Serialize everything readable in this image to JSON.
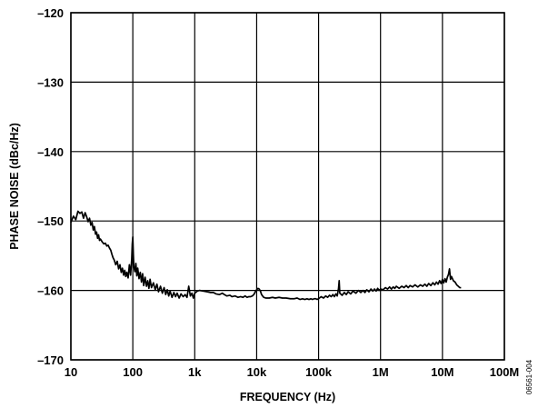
{
  "figure_id": "06561-004",
  "chart_data": {
    "type": "line",
    "title": "",
    "xlabel": "FREQUENCY (Hz)",
    "ylabel": "PHASE NOISE (dBc/Hz)",
    "x_scale": "log",
    "xlim": [
      10,
      100000000
    ],
    "ylim": [
      -170,
      -120
    ],
    "grid": true,
    "x_ticks": [
      {
        "value": 10,
        "label": "10"
      },
      {
        "value": 100,
        "label": "100"
      },
      {
        "value": 1000,
        "label": "1k"
      },
      {
        "value": 10000,
        "label": "10k"
      },
      {
        "value": 100000,
        "label": "100k"
      },
      {
        "value": 1000000,
        "label": "1M"
      },
      {
        "value": 10000000,
        "label": "10M"
      },
      {
        "value": 100000000,
        "label": "100M"
      }
    ],
    "y_ticks": [
      {
        "value": -120,
        "label": "–120"
      },
      {
        "value": -130,
        "label": "–130"
      },
      {
        "value": -140,
        "label": "–140"
      },
      {
        "value": -150,
        "label": "–150"
      },
      {
        "value": -160,
        "label": "–160"
      },
      {
        "value": -170,
        "label": "–170"
      }
    ],
    "series": [
      {
        "color": "#000000",
        "points": [
          [
            10,
            -150.2
          ],
          [
            11,
            -149.3
          ],
          [
            12,
            -149.8
          ],
          [
            13,
            -148.6
          ],
          [
            14,
            -148.9
          ],
          [
            15,
            -148.7
          ],
          [
            16,
            -149.6
          ],
          [
            17,
            -148.8
          ],
          [
            18,
            -149.4
          ],
          [
            19,
            -150.1
          ],
          [
            20,
            -149.6
          ],
          [
            21,
            -150.6
          ],
          [
            22,
            -150.2
          ],
          [
            23,
            -151.3
          ],
          [
            24,
            -150.8
          ],
          [
            25,
            -151.9
          ],
          [
            26,
            -151.6
          ],
          [
            27,
            -152.5
          ],
          [
            28,
            -152.0
          ],
          [
            29,
            -152.8
          ],
          [
            30,
            -152.6
          ],
          [
            32,
            -153.0
          ],
          [
            34,
            -153.3
          ],
          [
            36,
            -153.2
          ],
          [
            38,
            -153.6
          ],
          [
            40,
            -153.5
          ],
          [
            42,
            -153.9
          ],
          [
            44,
            -154.2
          ],
          [
            46,
            -154.8
          ],
          [
            48,
            -155.3
          ],
          [
            50,
            -155.6
          ],
          [
            53,
            -156.3
          ],
          [
            56,
            -155.8
          ],
          [
            59,
            -156.9
          ],
          [
            62,
            -156.3
          ],
          [
            65,
            -157.4
          ],
          [
            68,
            -156.8
          ],
          [
            71,
            -157.8
          ],
          [
            74,
            -157.1
          ],
          [
            77,
            -158.0
          ],
          [
            80,
            -157.4
          ],
          [
            84,
            -158.2
          ],
          [
            88,
            -156.3
          ],
          [
            92,
            -157.8
          ],
          [
            96,
            -155.5
          ],
          [
            98,
            -153.3
          ],
          [
            100,
            -152.3
          ],
          [
            102,
            -154.8
          ],
          [
            104,
            -156.6
          ],
          [
            108,
            -157.3
          ],
          [
            112,
            -156.1
          ],
          [
            116,
            -157.9
          ],
          [
            120,
            -156.8
          ],
          [
            126,
            -158.3
          ],
          [
            132,
            -157.4
          ],
          [
            138,
            -158.8
          ],
          [
            144,
            -157.6
          ],
          [
            150,
            -159.3
          ],
          [
            158,
            -158.1
          ],
          [
            166,
            -159.4
          ],
          [
            174,
            -158.6
          ],
          [
            182,
            -159.7
          ],
          [
            190,
            -158.4
          ],
          [
            200,
            -159.6
          ],
          [
            215,
            -158.9
          ],
          [
            230,
            -159.9
          ],
          [
            245,
            -159.1
          ],
          [
            260,
            -160.2
          ],
          [
            280,
            -159.4
          ],
          [
            300,
            -160.4
          ],
          [
            320,
            -159.6
          ],
          [
            340,
            -160.6
          ],
          [
            360,
            -159.9
          ],
          [
            380,
            -160.8
          ],
          [
            400,
            -160.1
          ],
          [
            430,
            -161.0
          ],
          [
            460,
            -160.3
          ],
          [
            490,
            -160.9
          ],
          [
            520,
            -160.4
          ],
          [
            560,
            -161.1
          ],
          [
            600,
            -160.5
          ],
          [
            650,
            -160.9
          ],
          [
            700,
            -160.6
          ],
          [
            750,
            -161.0
          ],
          [
            800,
            -159.4
          ],
          [
            850,
            -160.8
          ],
          [
            900,
            -160.4
          ],
          [
            950,
            -161.1
          ],
          [
            1000,
            -160.4
          ],
          [
            1100,
            -160.1
          ],
          [
            1200,
            -160.0
          ],
          [
            1400,
            -160.1
          ],
          [
            1600,
            -160.2
          ],
          [
            1800,
            -160.3
          ],
          [
            2000,
            -160.3
          ],
          [
            2200,
            -160.5
          ],
          [
            2500,
            -160.6
          ],
          [
            2800,
            -160.4
          ],
          [
            3000,
            -160.6
          ],
          [
            3300,
            -160.8
          ],
          [
            3700,
            -160.7
          ],
          [
            4000,
            -160.9
          ],
          [
            4500,
            -160.8
          ],
          [
            5000,
            -161.0
          ],
          [
            5500,
            -160.9
          ],
          [
            6000,
            -161.0
          ],
          [
            6500,
            -160.8
          ],
          [
            7000,
            -161.0
          ],
          [
            7500,
            -160.9
          ],
          [
            8000,
            -160.9
          ],
          [
            8500,
            -160.8
          ],
          [
            9000,
            -160.6
          ],
          [
            9500,
            -160.2
          ],
          [
            10000,
            -159.9
          ],
          [
            10500,
            -159.7
          ],
          [
            11000,
            -159.8
          ],
          [
            11500,
            -160.1
          ],
          [
            12000,
            -160.6
          ],
          [
            13000,
            -161.0
          ],
          [
            14000,
            -161.1
          ],
          [
            16000,
            -161.1
          ],
          [
            18000,
            -161.0
          ],
          [
            20000,
            -161.1
          ],
          [
            23000,
            -161.0
          ],
          [
            26000,
            -161.1
          ],
          [
            30000,
            -161.1
          ],
          [
            35000,
            -161.2
          ],
          [
            40000,
            -161.2
          ],
          [
            45000,
            -161.1
          ],
          [
            50000,
            -161.3
          ],
          [
            55000,
            -161.2
          ],
          [
            60000,
            -161.3
          ],
          [
            65000,
            -161.2
          ],
          [
            70000,
            -161.3
          ],
          [
            75000,
            -161.2
          ],
          [
            80000,
            -161.3
          ],
          [
            85000,
            -161.2
          ],
          [
            90000,
            -161.2
          ],
          [
            95000,
            -161.3
          ],
          [
            100000,
            -161.2
          ],
          [
            110000,
            -160.9
          ],
          [
            120000,
            -161.1
          ],
          [
            130000,
            -160.8
          ],
          [
            140000,
            -161.0
          ],
          [
            150000,
            -160.7
          ],
          [
            160000,
            -160.9
          ],
          [
            170000,
            -160.6
          ],
          [
            180000,
            -160.9
          ],
          [
            190000,
            -160.5
          ],
          [
            200000,
            -160.8
          ],
          [
            210000,
            -159.7
          ],
          [
            215000,
            -158.6
          ],
          [
            220000,
            -160.4
          ],
          [
            240000,
            -160.7
          ],
          [
            260000,
            -160.3
          ],
          [
            280000,
            -160.6
          ],
          [
            300000,
            -160.2
          ],
          [
            330000,
            -160.5
          ],
          [
            360000,
            -160.1
          ],
          [
            400000,
            -160.4
          ],
          [
            440000,
            -160.0
          ],
          [
            480000,
            -160.3
          ],
          [
            520000,
            -160.0
          ],
          [
            560000,
            -160.3
          ],
          [
            600000,
            -159.9
          ],
          [
            650000,
            -160.2
          ],
          [
            700000,
            -159.8
          ],
          [
            750000,
            -160.1
          ],
          [
            800000,
            -159.8
          ],
          [
            850000,
            -160.1
          ],
          [
            900000,
            -159.7
          ],
          [
            950000,
            -160.0
          ],
          [
            1000000,
            -159.8
          ],
          [
            1100000,
            -159.9
          ],
          [
            1200000,
            -159.6
          ],
          [
            1300000,
            -159.8
          ],
          [
            1400000,
            -159.5
          ],
          [
            1500000,
            -159.8
          ],
          [
            1600000,
            -159.5
          ],
          [
            1700000,
            -159.7
          ],
          [
            1800000,
            -159.4
          ],
          [
            2000000,
            -159.7
          ],
          [
            2200000,
            -159.4
          ],
          [
            2400000,
            -159.6
          ],
          [
            2600000,
            -159.3
          ],
          [
            2800000,
            -159.6
          ],
          [
            3000000,
            -159.3
          ],
          [
            3300000,
            -159.5
          ],
          [
            3600000,
            -159.2
          ],
          [
            4000000,
            -159.5
          ],
          [
            4400000,
            -159.2
          ],
          [
            4800000,
            -159.4
          ],
          [
            5200000,
            -159.1
          ],
          [
            5600000,
            -159.4
          ],
          [
            6000000,
            -159.0
          ],
          [
            6500000,
            -159.3
          ],
          [
            7000000,
            -158.9
          ],
          [
            7500000,
            -159.2
          ],
          [
            8000000,
            -158.8
          ],
          [
            8500000,
            -159.1
          ],
          [
            9000000,
            -158.6
          ],
          [
            9500000,
            -159.0
          ],
          [
            10000000,
            -158.4
          ],
          [
            10500000,
            -158.9
          ],
          [
            11000000,
            -158.3
          ],
          [
            11500000,
            -158.8
          ],
          [
            12000000,
            -158.1
          ],
          [
            12500000,
            -157.7
          ],
          [
            13000000,
            -156.9
          ],
          [
            13500000,
            -158.4
          ],
          [
            14000000,
            -158.0
          ],
          [
            15000000,
            -158.6
          ],
          [
            16000000,
            -158.8
          ],
          [
            17000000,
            -159.2
          ],
          [
            18000000,
            -159.4
          ],
          [
            19000000,
            -159.6
          ],
          [
            20000000,
            -159.6
          ]
        ]
      }
    ]
  }
}
